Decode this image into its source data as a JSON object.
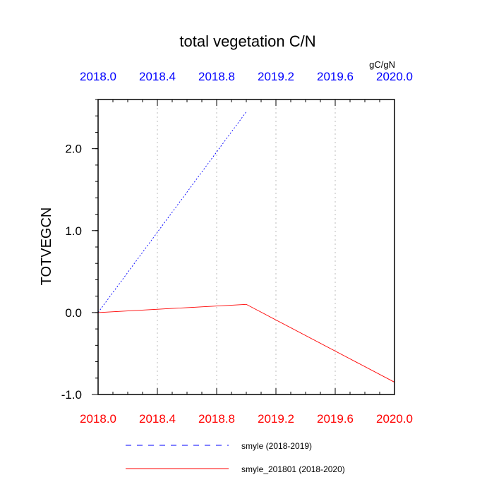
{
  "chart_data": {
    "type": "line",
    "title": "total vegetation C/N",
    "units": "gC/gN",
    "ylabel": "TOTVEGCN",
    "xlabel": "",
    "ylim": [
      -1.0,
      2.6
    ],
    "yticks": [
      -1.0,
      0.0,
      1.0,
      2.0
    ],
    "ytick_labels": [
      "-1.0",
      "0.0",
      "1.0",
      "2.0"
    ],
    "xlim_top": [
      2018.0,
      2020.0
    ],
    "xlim_bottom": [
      2018.0,
      2020.0
    ],
    "xticks": [
      2018.0,
      2018.4,
      2018.8,
      2019.2,
      2019.6,
      2020.0
    ],
    "xtick_labels": [
      "2018.0",
      "2018.4",
      "2018.8",
      "2019.2",
      "2019.6",
      "2020.0"
    ],
    "grid": "vertical-dotted",
    "legend_position": "bottom",
    "series": [
      {
        "name": "smyle (2018-2019)",
        "axis": "top",
        "color": "#0000ff",
        "dash": "dashed",
        "x": [
          2018.0,
          2019.0
        ],
        "y": [
          0.0,
          2.45
        ]
      },
      {
        "name": "smyle_201801 (2018-2020)",
        "axis": "bottom",
        "color": "#ff0000",
        "dash": "solid",
        "x": [
          2018.0,
          2019.0,
          2020.0
        ],
        "y": [
          0.0,
          0.1,
          -0.85
        ]
      }
    ]
  }
}
